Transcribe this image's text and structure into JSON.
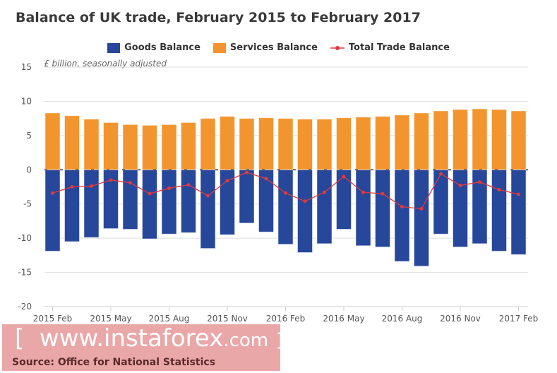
{
  "chart_data": {
    "type": "bar",
    "title": "Balance of UK trade, February 2015 to February 2017",
    "ylabel": "£ billion, seasonally adjusted",
    "ylim": [
      -20,
      15
    ],
    "yticks": [
      15,
      10,
      5,
      0,
      -5,
      -10,
      -15,
      -20
    ],
    "xtick_labels": [
      "2015 Feb",
      "2015 May",
      "2015 Aug",
      "2015 Nov",
      "2016 Feb",
      "2016 May",
      "2016 Aug",
      "2016 Nov",
      "2017 Feb"
    ],
    "legend": [
      "Goods Balance",
      "Services Balance",
      "Total Trade Balance"
    ],
    "legend_position": "top",
    "series": [
      {
        "name": "Goods Balance",
        "type": "bar",
        "color": "#27479a",
        "values": [
          -11.9,
          -10.5,
          -9.9,
          -8.6,
          -8.7,
          -10.1,
          -9.4,
          -9.2,
          -11.5,
          -9.5,
          -7.8,
          -9.1,
          -10.9,
          -12.1,
          -10.8,
          -8.7,
          -11.1,
          -11.3,
          -13.4,
          -14.1,
          -9.4,
          -11.3,
          -10.8,
          -11.9,
          -12.4
        ]
      },
      {
        "name": "Services Balance",
        "type": "bar",
        "color": "#f3952f",
        "values": [
          8.3,
          7.9,
          7.4,
          6.9,
          6.6,
          6.5,
          6.6,
          6.9,
          7.5,
          7.8,
          7.5,
          7.6,
          7.5,
          7.4,
          7.4,
          7.6,
          7.7,
          7.8,
          8.0,
          8.3,
          8.6,
          8.8,
          8.9,
          8.8,
          8.6
        ]
      },
      {
        "name": "Total Trade Balance",
        "type": "line",
        "color": "#e0393e",
        "values": [
          -3.4,
          -2.5,
          -2.4,
          -1.5,
          -1.9,
          -3.5,
          -2.7,
          -2.2,
          -3.8,
          -1.6,
          -0.4,
          -1.3,
          -3.4,
          -4.6,
          -3.3,
          -1.0,
          -3.3,
          -3.5,
          -5.4,
          -5.7,
          -0.6,
          -2.3,
          -1.8,
          -2.9,
          -3.6
        ]
      }
    ]
  },
  "source": "Source: Office for National Statistics",
  "watermark": {
    "open": "[",
    "text": "www.instaforex",
    "tld": ".com",
    "close": "]"
  }
}
